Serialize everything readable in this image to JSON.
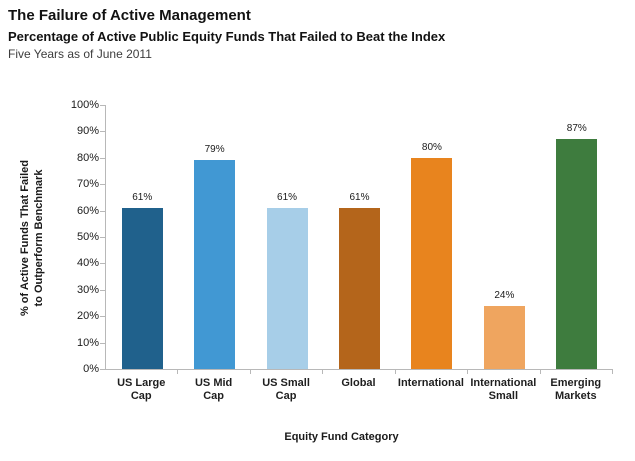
{
  "header": {
    "title": "The Failure of Active Management",
    "subtitle": "Percentage of Active Public Equity Funds That Failed to Beat the Index",
    "caption": "Five Years as of June 2011"
  },
  "chart_data": {
    "type": "bar",
    "categories": [
      "US Large Cap",
      "US Mid Cap",
      "US Small Cap",
      "Global",
      "International",
      "International Small",
      "Emerging Markets"
    ],
    "category_labels": [
      "US Large\nCap",
      "US Mid\nCap",
      "US Small\nCap",
      "Global",
      "International",
      "International\nSmall",
      "Emerging\nMarkets"
    ],
    "values": [
      61,
      79,
      61,
      61,
      80,
      24,
      87
    ],
    "bar_labels": [
      "61%",
      "79%",
      "61%",
      "61%",
      "80%",
      "24%",
      "87%"
    ],
    "bar_colors": [
      "#20618C",
      "#4198D3",
      "#A7CEE8",
      "#B4651B",
      "#E8841E",
      "#EFA55F",
      "#3E7C3E"
    ],
    "xlabel": "Equity Fund Category",
    "ylabel": "% of Active Funds That Failed\nto Outperform Benchmark",
    "yticks": [
      "0%",
      "10%",
      "20%",
      "30%",
      "40%",
      "50%",
      "60%",
      "70%",
      "80%",
      "90%",
      "100%"
    ],
    "ylim": [
      0,
      100
    ],
    "grid": false,
    "legend": null,
    "axis_color": "#b8b8b8"
  }
}
